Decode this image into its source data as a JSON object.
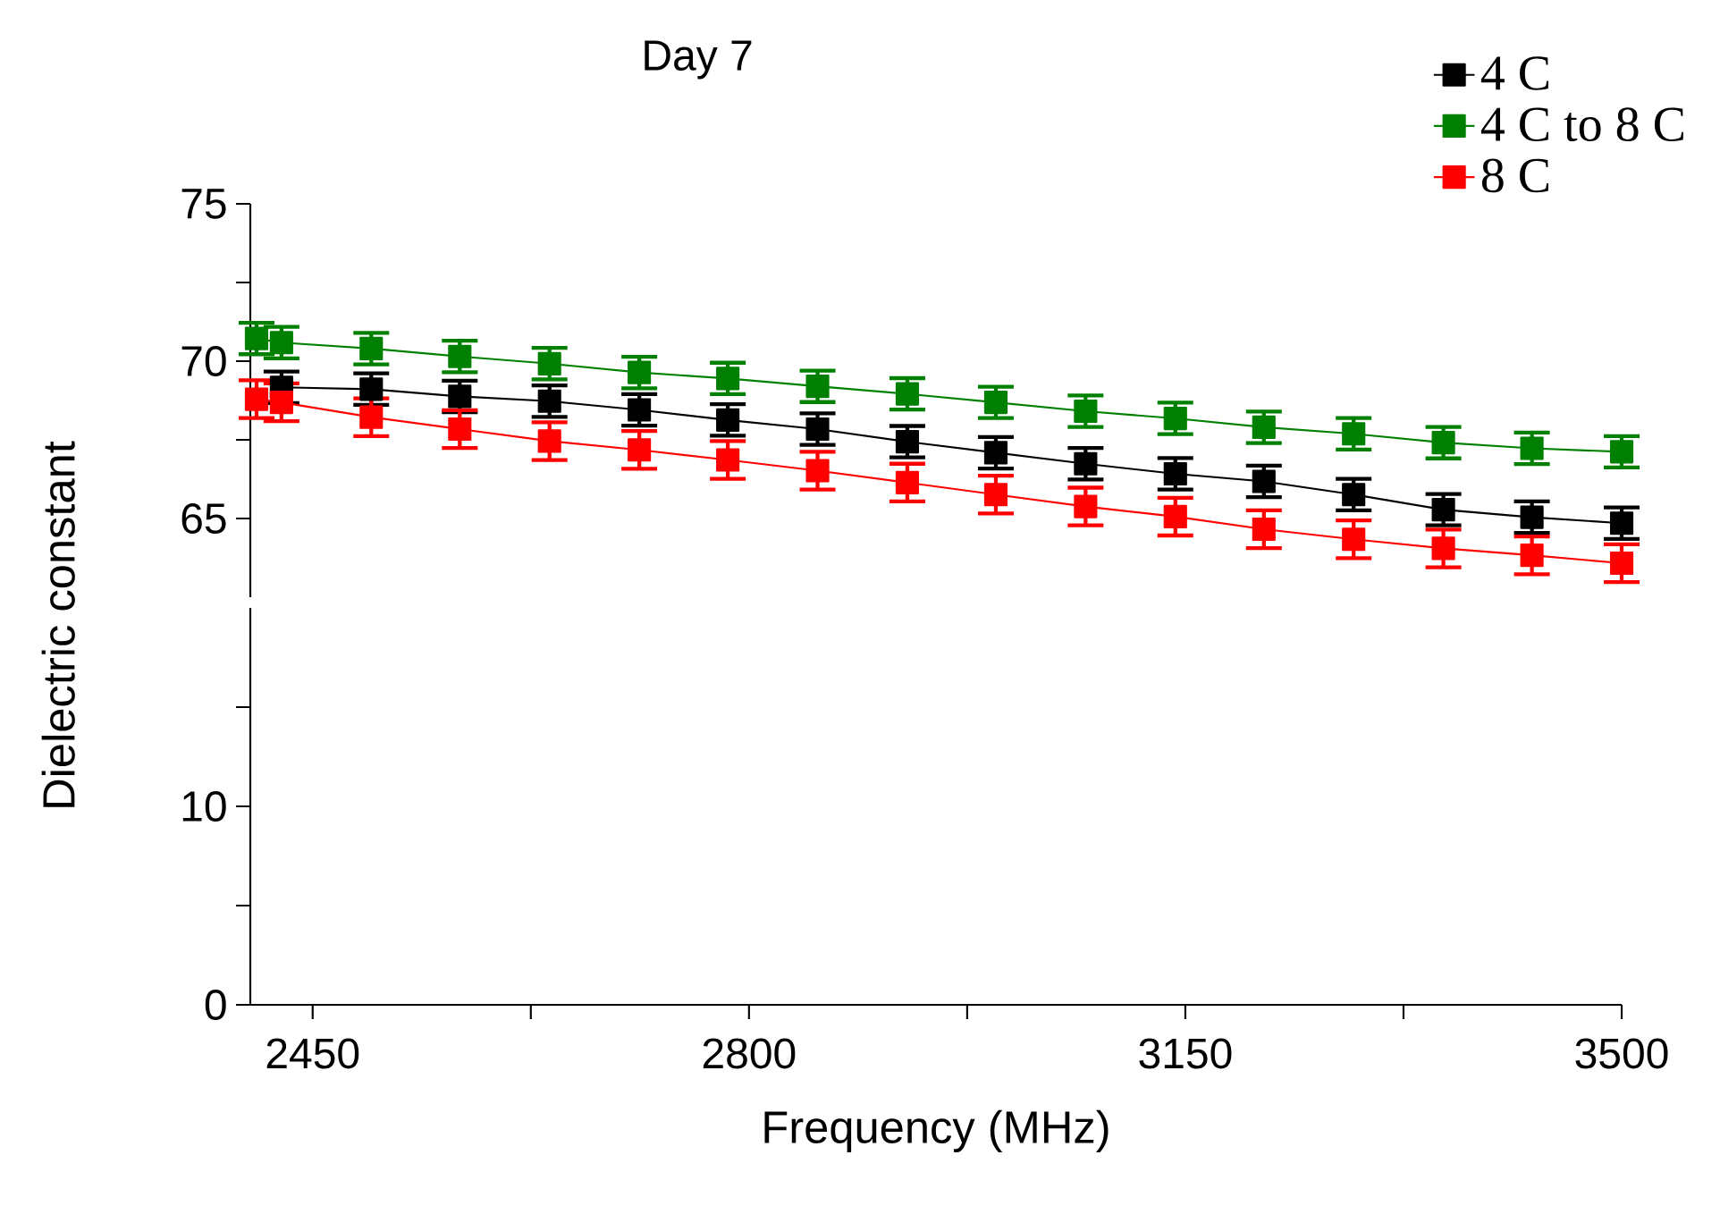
{
  "chart_data": [
    {
      "type": "line",
      "title": "Day 7",
      "xlim": [
        2400,
        3500
      ],
      "ylim": [
        62.5,
        75
      ],
      "yticks": [
        65,
        {
          "value": 67.5,
          "label": null
        },
        70,
        {
          "value": 72.5,
          "label": null
        },
        75
      ],
      "tick_labels": "y",
      "legend": "top right",
      "marker": "square",
      "line_style": "solid",
      "grid": false,
      "x": [
        2405,
        2425,
        2497,
        2568,
        2640,
        2712,
        2783,
        2855,
        2927,
        2998,
        3070,
        3142,
        3213,
        3285,
        3357,
        3428,
        3500
      ],
      "series": [
        {
          "name": "4 C",
          "color": "#000000",
          "values": [
            null,
            69.17,
            69.11,
            68.88,
            68.73,
            68.45,
            68.13,
            67.84,
            67.44,
            67.09,
            66.74,
            66.42,
            66.18,
            65.76,
            65.28,
            65.04,
            64.85
          ],
          "errors": [
            null,
            0.5,
            0.5,
            0.5,
            0.5,
            0.5,
            0.5,
            0.5,
            0.5,
            0.5,
            0.5,
            0.5,
            0.5,
            0.5,
            0.5,
            0.5,
            0.5
          ]
        },
        {
          "name": "4 C to 8 C",
          "color": "#008000",
          "values": [
            70.72,
            70.59,
            70.4,
            70.15,
            69.92,
            69.64,
            69.45,
            69.2,
            68.96,
            68.69,
            68.41,
            68.18,
            67.9,
            67.69,
            67.41,
            67.23,
            67.12
          ],
          "errors": [
            0.5,
            0.5,
            0.5,
            0.5,
            0.5,
            0.5,
            0.5,
            0.5,
            0.5,
            0.5,
            0.5,
            0.5,
            0.5,
            0.5,
            0.5,
            0.5,
            0.5
          ]
        },
        {
          "name": "8 C",
          "color": "#ff0000",
          "values": [
            68.79,
            68.69,
            68.22,
            67.84,
            67.46,
            67.18,
            66.86,
            66.52,
            66.14,
            65.76,
            65.38,
            65.06,
            64.66,
            64.34,
            64.05,
            63.83,
            63.58
          ],
          "errors": [
            0.6,
            0.6,
            0.6,
            0.6,
            0.6,
            0.6,
            0.6,
            0.6,
            0.6,
            0.6,
            0.6,
            0.6,
            0.6,
            0.6,
            0.6,
            0.6,
            0.6
          ]
        }
      ]
    },
    {
      "type": "line",
      "xlabel": "Frequency (MHz)",
      "ylabel": "Dielectric constant",
      "xlim": [
        2400,
        3500
      ],
      "ylim": [
        0,
        20
      ],
      "xticks": [
        2450,
        {
          "value": 2625,
          "label": null
        },
        2800,
        {
          "value": 2975,
          "label": null
        },
        3150,
        {
          "value": 3325,
          "label": null
        },
        3500
      ],
      "yticks": [
        0,
        {
          "value": 5,
          "label": null
        },
        10,
        {
          "value": 15,
          "label": null
        }
      ]
    }
  ]
}
